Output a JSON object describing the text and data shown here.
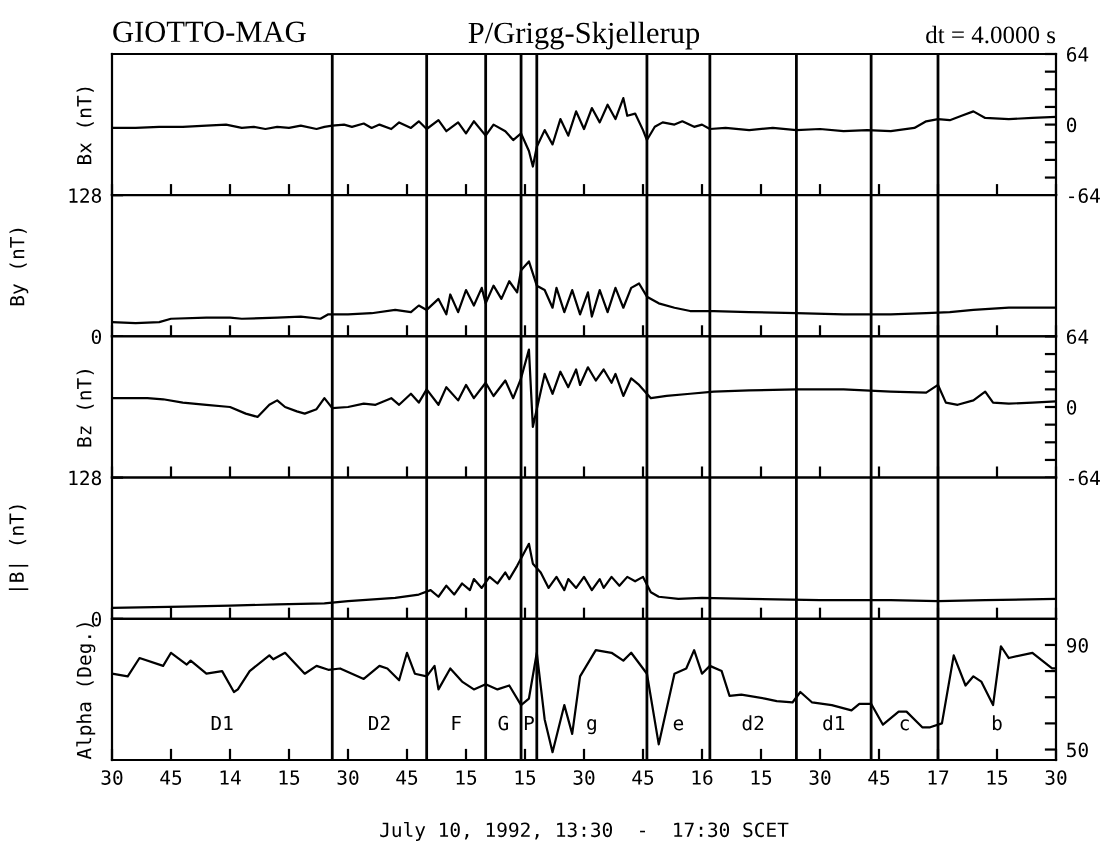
{
  "chart_data": [
    {
      "type": "line",
      "title": "P/Grigg-Skjellerup",
      "ylabel": "Bx (nT)",
      "annotations": [
        "GIOTTO-MAG",
        "dt = 4.0000 s"
      ],
      "tick_labels": "y",
      "grid": false,
      "marker": "none",
      "line_style": "solid",
      "xlim": [
        "1992-07-10T13:30",
        "1992-07-10T17:30"
      ],
      "ylim": [
        -64,
        64
      ],
      "yticks": [
        64,
        {
          "value": 48,
          "label": null
        },
        {
          "value": 32,
          "label": null
        },
        {
          "value": 16,
          "label": null
        },
        0,
        {
          "value": -16,
          "label": null
        },
        {
          "value": -32,
          "label": null
        },
        {
          "value": -48,
          "label": null
        },
        -64
      ],
      "ref_lines": [
        {
          "axis": "x",
          "value": "1992-07-10T14:26"
        },
        {
          "axis": "x",
          "value": "1992-07-10T14:50"
        },
        {
          "axis": "x",
          "value": "1992-07-10T15:05"
        },
        {
          "axis": "x",
          "value": "1992-07-10T15:14"
        },
        {
          "axis": "x",
          "value": "1992-07-10T15:18"
        },
        {
          "axis": "x",
          "value": "1992-07-10T15:46"
        },
        {
          "axis": "x",
          "value": "1992-07-10T16:02"
        },
        {
          "axis": "x",
          "value": "1992-07-10T16:24"
        },
        {
          "axis": "x",
          "value": "1992-07-10T16:43"
        },
        {
          "axis": "x",
          "value": "1992-07-10T17:00"
        }
      ],
      "series": [
        {
          "color": "#000000",
          "x": [
            "1992-07-10T13:30",
            "1992-07-10T13:36",
            "1992-07-10T13:42",
            "1992-07-10T13:48",
            "1992-07-10T13:54",
            "1992-07-10T13:59",
            "1992-07-10T14:03",
            "1992-07-10T14:06",
            "1992-07-10T14:09",
            "1992-07-10T14:12",
            "1992-07-10T14:15",
            "1992-07-10T14:18",
            "1992-07-10T14:22",
            "1992-07-10T14:24",
            "1992-07-10T14:26",
            "1992-07-10T14:29",
            "1992-07-10T14:31",
            "1992-07-10T14:34",
            "1992-07-10T14:36",
            "1992-07-10T14:38",
            "1992-07-10T14:41",
            "1992-07-10T14:43",
            "1992-07-10T14:46",
            "1992-07-10T14:48",
            "1992-07-10T14:50",
            "1992-07-10T14:53",
            "1992-07-10T14:55",
            "1992-07-10T14:58",
            "1992-07-10T15:00",
            "1992-07-10T15:02",
            "1992-07-10T15:05",
            "1992-07-10T15:07",
            "1992-07-10T15:10",
            "1992-07-10T15:12",
            "1992-07-10T15:14",
            "1992-07-10T15:16",
            "1992-07-10T15:17",
            "1992-07-10T15:18",
            "1992-07-10T15:20",
            "1992-07-10T15:22",
            "1992-07-10T15:24",
            "1992-07-10T15:26",
            "1992-07-10T15:28",
            "1992-07-10T15:30",
            "1992-07-10T15:32",
            "1992-07-10T15:34",
            "1992-07-10T15:36",
            "1992-07-10T15:38",
            "1992-07-10T15:40",
            "1992-07-10T15:41",
            "1992-07-10T15:43",
            "1992-07-10T15:45",
            "1992-07-10T15:46",
            "1992-07-10T15:48",
            "1992-07-10T15:50",
            "1992-07-10T15:53",
            "1992-07-10T15:55",
            "1992-07-10T15:58",
            "1992-07-10T16:00",
            "1992-07-10T16:02",
            "1992-07-10T16:06",
            "1992-07-10T16:12",
            "1992-07-10T16:18",
            "1992-07-10T16:24",
            "1992-07-10T16:30",
            "1992-07-10T16:36",
            "1992-07-10T16:42",
            "1992-07-10T16:48",
            "1992-07-10T16:54",
            "1992-07-10T16:57",
            "1992-07-10T17:00",
            "1992-07-10T17:03",
            "1992-07-10T17:06",
            "1992-07-10T17:09",
            "1992-07-10T17:12",
            "1992-07-10T17:18",
            "1992-07-10T17:24",
            "1992-07-10T17:30"
          ],
          "values": [
            -3,
            -3,
            -2,
            -2,
            -1,
            0,
            -3,
            -2,
            -4,
            -2,
            -3,
            -1,
            -4,
            -2,
            -1,
            0,
            -2,
            1,
            -3,
            0,
            -4,
            2,
            -3,
            3,
            -4,
            4,
            -6,
            2,
            -8,
            3,
            -10,
            0,
            -6,
            -14,
            -8,
            -24,
            -38,
            -20,
            -5,
            -18,
            5,
            -10,
            12,
            -4,
            15,
            2,
            18,
            5,
            24,
            8,
            10,
            -5,
            -14,
            -2,
            2,
            0,
            3,
            -2,
            0,
            -4,
            -3,
            -5,
            -3,
            -5,
            -4,
            -6,
            -5,
            -6,
            -3,
            3,
            5,
            4,
            8,
            12,
            6,
            5,
            6,
            7
          ]
        }
      ]
    },
    {
      "type": "line",
      "ylabel": "By (nT)",
      "tick_labels": "y",
      "grid": false,
      "marker": "none",
      "line_style": "solid",
      "xlim": [
        "1992-07-10T13:30",
        "1992-07-10T17:30"
      ],
      "ylim": [
        0,
        128
      ],
      "yticks": [
        0,
        128
      ],
      "ref_lines": [
        {
          "axis": "x",
          "value": "1992-07-10T14:26"
        },
        {
          "axis": "x",
          "value": "1992-07-10T14:50"
        },
        {
          "axis": "x",
          "value": "1992-07-10T15:05"
        },
        {
          "axis": "x",
          "value": "1992-07-10T15:14"
        },
        {
          "axis": "x",
          "value": "1992-07-10T15:18"
        },
        {
          "axis": "x",
          "value": "1992-07-10T15:46"
        },
        {
          "axis": "x",
          "value": "1992-07-10T16:02"
        },
        {
          "axis": "x",
          "value": "1992-07-10T16:24"
        },
        {
          "axis": "x",
          "value": "1992-07-10T16:43"
        },
        {
          "axis": "x",
          "value": "1992-07-10T17:00"
        }
      ],
      "series": [
        {
          "color": "#000000",
          "x": [
            "1992-07-10T13:30",
            "1992-07-10T13:36",
            "1992-07-10T13:42",
            "1992-07-10T13:45",
            "1992-07-10T13:54",
            "1992-07-10T14:00",
            "1992-07-10T14:03",
            "1992-07-10T14:12",
            "1992-07-10T14:18",
            "1992-07-10T14:23",
            "1992-07-10T14:25",
            "1992-07-10T14:30",
            "1992-07-10T14:36",
            "1992-07-10T14:42",
            "1992-07-10T14:46",
            "1992-07-10T14:48",
            "1992-07-10T14:50",
            "1992-07-10T14:53",
            "1992-07-10T14:55",
            "1992-07-10T14:56",
            "1992-07-10T14:58",
            "1992-07-10T15:00",
            "1992-07-10T15:02",
            "1992-07-10T15:04",
            "1992-07-10T15:05",
            "1992-07-10T15:07",
            "1992-07-10T15:09",
            "1992-07-10T15:11",
            "1992-07-10T15:13",
            "1992-07-10T15:14",
            "1992-07-10T15:16",
            "1992-07-10T15:18",
            "1992-07-10T15:20",
            "1992-07-10T15:22",
            "1992-07-10T15:23",
            "1992-07-10T15:25",
            "1992-07-10T15:27",
            "1992-07-10T15:29",
            "1992-07-10T15:31",
            "1992-07-10T15:32",
            "1992-07-10T15:34",
            "1992-07-10T15:36",
            "1992-07-10T15:38",
            "1992-07-10T15:40",
            "1992-07-10T15:42",
            "1992-07-10T15:44",
            "1992-07-10T15:46",
            "1992-07-10T15:49",
            "1992-07-10T15:53",
            "1992-07-10T15:57",
            "1992-07-10T16:03",
            "1992-07-10T16:12",
            "1992-07-10T16:24",
            "1992-07-10T16:36",
            "1992-07-10T16:48",
            "1992-07-10T16:57",
            "1992-07-10T17:03",
            "1992-07-10T17:09",
            "1992-07-10T17:18",
            "1992-07-10T17:30"
          ],
          "values": [
            13,
            12,
            13,
            16,
            17,
            17,
            16,
            17,
            18,
            16,
            20,
            20,
            21,
            24,
            22,
            28,
            24,
            34,
            20,
            38,
            22,
            42,
            28,
            44,
            30,
            46,
            34,
            50,
            40,
            60,
            68,
            46,
            42,
            26,
            44,
            22,
            42,
            20,
            40,
            18,
            42,
            22,
            44,
            26,
            44,
            48,
            36,
            30,
            26,
            23,
            23,
            22,
            21,
            20,
            20,
            21,
            22,
            24,
            26,
            26
          ]
        }
      ]
    },
    {
      "type": "line",
      "ylabel": "Bz (nT)",
      "tick_labels": "y",
      "grid": false,
      "marker": "none",
      "line_style": "solid",
      "xlim": [
        "1992-07-10T13:30",
        "1992-07-10T17:30"
      ],
      "ylim": [
        -64,
        64
      ],
      "yticks": [
        64,
        {
          "value": 48,
          "label": null
        },
        {
          "value": 32,
          "label": null
        },
        {
          "value": 16,
          "label": null
        },
        0,
        {
          "value": -16,
          "label": null
        },
        {
          "value": -32,
          "label": null
        },
        {
          "value": -48,
          "label": null
        },
        -64
      ],
      "ref_lines": [
        {
          "axis": "x",
          "value": "1992-07-10T14:26"
        },
        {
          "axis": "x",
          "value": "1992-07-10T14:50"
        },
        {
          "axis": "x",
          "value": "1992-07-10T15:05"
        },
        {
          "axis": "x",
          "value": "1992-07-10T15:14"
        },
        {
          "axis": "x",
          "value": "1992-07-10T15:18"
        },
        {
          "axis": "x",
          "value": "1992-07-10T15:46"
        },
        {
          "axis": "x",
          "value": "1992-07-10T16:02"
        },
        {
          "axis": "x",
          "value": "1992-07-10T16:24"
        },
        {
          "axis": "x",
          "value": "1992-07-10T16:43"
        },
        {
          "axis": "x",
          "value": "1992-07-10T17:00"
        }
      ],
      "series": [
        {
          "color": "#000000",
          "x": [
            "1992-07-10T13:30",
            "1992-07-10T13:39",
            "1992-07-10T13:43",
            "1992-07-10T13:48",
            "1992-07-10T13:54",
            "1992-07-10T14:00",
            "1992-07-10T14:04",
            "1992-07-10T14:07",
            "1992-07-10T14:10",
            "1992-07-10T14:12",
            "1992-07-10T14:14",
            "1992-07-10T14:17",
            "1992-07-10T14:19",
            "1992-07-10T14:22",
            "1992-07-10T14:24",
            "1992-07-10T14:26",
            "1992-07-10T14:30",
            "1992-07-10T14:34",
            "1992-07-10T14:37",
            "1992-07-10T14:41",
            "1992-07-10T14:43",
            "1992-07-10T14:46",
            "1992-07-10T14:48",
            "1992-07-10T14:50",
            "1992-07-10T14:53",
            "1992-07-10T14:55",
            "1992-07-10T14:58",
            "1992-07-10T15:00",
            "1992-07-10T15:02",
            "1992-07-10T15:05",
            "1992-07-10T15:07",
            "1992-07-10T15:10",
            "1992-07-10T15:12",
            "1992-07-10T15:14",
            "1992-07-10T15:16",
            "1992-07-10T15:17",
            "1992-07-10T15:19",
            "1992-07-10T15:20",
            "1992-07-10T15:22",
            "1992-07-10T15:24",
            "1992-07-10T15:26",
            "1992-07-10T15:28",
            "1992-07-10T15:29",
            "1992-07-10T15:31",
            "1992-07-10T15:33",
            "1992-07-10T15:35",
            "1992-07-10T15:37",
            "1992-07-10T15:38",
            "1992-07-10T15:40",
            "1992-07-10T15:42",
            "1992-07-10T15:44",
            "1992-07-10T15:47",
            "1992-07-10T15:51",
            "1992-07-10T15:57",
            "1992-07-10T16:03",
            "1992-07-10T16:12",
            "1992-07-10T16:24",
            "1992-07-10T16:36",
            "1992-07-10T16:48",
            "1992-07-10T16:57",
            "1992-07-10T17:00",
            "1992-07-10T17:02",
            "1992-07-10T17:05",
            "1992-07-10T17:09",
            "1992-07-10T17:12",
            "1992-07-10T17:14",
            "1992-07-10T17:18",
            "1992-07-10T17:24",
            "1992-07-10T17:30"
          ],
          "values": [
            8,
            8,
            7,
            4,
            2,
            0,
            -6,
            -9,
            2,
            6,
            0,
            -4,
            -6,
            -2,
            8,
            -1,
            0,
            3,
            2,
            8,
            2,
            12,
            4,
            16,
            2,
            18,
            6,
            20,
            8,
            22,
            10,
            24,
            8,
            26,
            52,
            -18,
            14,
            30,
            12,
            32,
            18,
            34,
            20,
            36,
            24,
            34,
            22,
            30,
            10,
            26,
            20,
            8,
            10,
            12,
            14,
            15,
            16,
            16,
            14,
            13,
            20,
            4,
            2,
            6,
            14,
            4,
            3,
            4,
            5
          ]
        }
      ]
    },
    {
      "type": "line",
      "ylabel": "|B| (nT)",
      "tick_labels": "y",
      "grid": false,
      "marker": "none",
      "line_style": "solid",
      "xlim": [
        "1992-07-10T13:30",
        "1992-07-10T17:30"
      ],
      "ylim": [
        0,
        128
      ],
      "yticks": [
        0,
        128
      ],
      "ref_lines": [
        {
          "axis": "x",
          "value": "1992-07-10T14:26"
        },
        {
          "axis": "x",
          "value": "1992-07-10T14:50"
        },
        {
          "axis": "x",
          "value": "1992-07-10T15:05"
        },
        {
          "axis": "x",
          "value": "1992-07-10T15:14"
        },
        {
          "axis": "x",
          "value": "1992-07-10T15:18"
        },
        {
          "axis": "x",
          "value": "1992-07-10T15:46"
        },
        {
          "axis": "x",
          "value": "1992-07-10T16:02"
        },
        {
          "axis": "x",
          "value": "1992-07-10T16:24"
        },
        {
          "axis": "x",
          "value": "1992-07-10T16:43"
        },
        {
          "axis": "x",
          "value": "1992-07-10T17:00"
        }
      ],
      "series": [
        {
          "color": "#000000",
          "x": [
            "1992-07-10T13:30",
            "1992-07-10T13:48",
            "1992-07-10T14:00",
            "1992-07-10T14:12",
            "1992-07-10T14:24",
            "1992-07-10T14:30",
            "1992-07-10T14:42",
            "1992-07-10T14:48",
            "1992-07-10T14:51",
            "1992-07-10T14:53",
            "1992-07-10T14:55",
            "1992-07-10T14:57",
            "1992-07-10T14:59",
            "1992-07-10T15:01",
            "1992-07-10T15:02",
            "1992-07-10T15:04",
            "1992-07-10T15:06",
            "1992-07-10T15:08",
            "1992-07-10T15:10",
            "1992-07-10T15:11",
            "1992-07-10T15:13",
            "1992-07-10T15:16",
            "1992-07-10T15:17",
            "1992-07-10T15:19",
            "1992-07-10T15:21",
            "1992-07-10T15:23",
            "1992-07-10T15:25",
            "1992-07-10T15:26",
            "1992-07-10T15:28",
            "1992-07-10T15:30",
            "1992-07-10T15:32",
            "1992-07-10T15:34",
            "1992-07-10T15:35",
            "1992-07-10T15:37",
            "1992-07-10T15:39",
            "1992-07-10T15:41",
            "1992-07-10T15:43",
            "1992-07-10T15:45",
            "1992-07-10T15:47",
            "1992-07-10T15:49",
            "1992-07-10T15:54",
            "1992-07-10T16:00",
            "1992-07-10T16:12",
            "1992-07-10T16:30",
            "1992-07-10T16:48",
            "1992-07-10T17:00",
            "1992-07-10T17:12",
            "1992-07-10T17:30"
          ],
          "values": [
            10,
            11,
            12,
            13,
            14,
            16,
            19,
            22,
            26,
            20,
            30,
            22,
            32,
            26,
            36,
            28,
            38,
            32,
            42,
            36,
            48,
            68,
            50,
            42,
            28,
            38,
            26,
            36,
            28,
            38,
            26,
            36,
            28,
            38,
            30,
            38,
            34,
            38,
            24,
            20,
            18,
            19,
            18,
            17,
            17,
            16,
            17,
            18
          ]
        }
      ]
    },
    {
      "type": "line",
      "ylabel": "Alpha (Deg.)",
      "xlabel": "July 10, 1992, 13:30  -  17:30 SCET",
      "grid": false,
      "marker": "none",
      "line_style": "solid",
      "xlim": [
        "1992-07-10T13:30",
        "1992-07-10T17:30"
      ],
      "xticks": [
        {
          "value": "1992-07-10T13:30",
          "label": "30"
        },
        {
          "value": "1992-07-10T13:45",
          "label": "45"
        },
        {
          "value": "1992-07-10T14:00",
          "label": "14"
        },
        {
          "value": "1992-07-10T14:15",
          "label": "15"
        },
        {
          "value": "1992-07-10T14:30",
          "label": "30"
        },
        {
          "value": "1992-07-10T14:45",
          "label": "45"
        },
        {
          "value": "1992-07-10T15:00",
          "label": "15"
        },
        {
          "value": "1992-07-10T15:15",
          "label": "15"
        },
        {
          "value": "1992-07-10T15:30",
          "label": "30"
        },
        {
          "value": "1992-07-10T15:45",
          "label": "45"
        },
        {
          "value": "1992-07-10T16:00",
          "label": "16"
        },
        {
          "value": "1992-07-10T16:15",
          "label": "15"
        },
        {
          "value": "1992-07-10T16:30",
          "label": "30"
        },
        {
          "value": "1992-07-10T16:45",
          "label": "45"
        },
        {
          "value": "1992-07-10T17:00",
          "label": "17"
        },
        {
          "value": "1992-07-10T17:15",
          "label": "15"
        },
        {
          "value": "1992-07-10T17:30",
          "label": "30"
        }
      ],
      "ylim": [
        46,
        100
      ],
      "yticks": [
        90,
        {
          "value": 80,
          "label": null
        },
        {
          "value": 70,
          "label": null
        },
        {
          "value": 60,
          "label": null
        },
        50
      ],
      "ref_lines": [
        {
          "axis": "x",
          "value": "1992-07-10T14:26"
        },
        {
          "axis": "x",
          "value": "1992-07-10T14:50"
        },
        {
          "axis": "x",
          "value": "1992-07-10T15:05"
        },
        {
          "axis": "x",
          "value": "1992-07-10T15:14"
        },
        {
          "axis": "x",
          "value": "1992-07-10T15:18"
        },
        {
          "axis": "x",
          "value": "1992-07-10T15:46"
        },
        {
          "axis": "x",
          "value": "1992-07-10T16:02"
        },
        {
          "axis": "x",
          "value": "1992-07-10T16:24"
        },
        {
          "axis": "x",
          "value": "1992-07-10T16:43"
        },
        {
          "axis": "x",
          "value": "1992-07-10T17:00"
        }
      ],
      "annotations": [
        "D1",
        "D2",
        "F",
        "G",
        "P",
        "g",
        "e",
        "d2",
        "d1",
        "c",
        "b"
      ],
      "series": [
        {
          "color": "#000000",
          "x": [
            "1992-07-10T13:30",
            "1992-07-10T13:34",
            "1992-07-10T13:37",
            "1992-07-10T13:43",
            "1992-07-10T13:45",
            "1992-07-10T13:49",
            "1992-07-10T13:50",
            "1992-07-10T13:54",
            "1992-07-10T13:58",
            "1992-07-10T14:01",
            "1992-07-10T14:02",
            "1992-07-10T14:05",
            "1992-07-10T14:10",
            "1992-07-10T14:11",
            "1992-07-10T14:14",
            "1992-07-10T14:19",
            "1992-07-10T14:22",
            "1992-07-10T14:25",
            "1992-07-10T14:28",
            "1992-07-10T14:31",
            "1992-07-10T14:34",
            "1992-07-10T14:38",
            "1992-07-10T14:40",
            "1992-07-10T14:43",
            "1992-07-10T14:45",
            "1992-07-10T14:47",
            "1992-07-10T14:50",
            "1992-07-10T14:52",
            "1992-07-10T14:53",
            "1992-07-10T14:56",
            "1992-07-10T14:59",
            "1992-07-10T15:02",
            "1992-07-10T15:05",
            "1992-07-10T15:08",
            "1992-07-10T15:11",
            "1992-07-10T15:14",
            "1992-07-10T15:16",
            "1992-07-10T15:18",
            "1992-07-10T15:20",
            "1992-07-10T15:22",
            "1992-07-10T15:25",
            "1992-07-10T15:27",
            "1992-07-10T15:29",
            "1992-07-10T15:33",
            "1992-07-10T15:37",
            "1992-07-10T15:40",
            "1992-07-10T15:42",
            "1992-07-10T15:46",
            "1992-07-10T15:49",
            "1992-07-10T15:53",
            "1992-07-10T15:56",
            "1992-07-10T15:58",
            "1992-07-10T16:00",
            "1992-07-10T16:02",
            "1992-07-10T16:05",
            "1992-07-10T16:07",
            "1992-07-10T16:10",
            "1992-07-10T16:16",
            "1992-07-10T16:19",
            "1992-07-10T16:23",
            "1992-07-10T16:25",
            "1992-07-10T16:28",
            "1992-07-10T16:33",
            "1992-07-10T16:38",
            "1992-07-10T16:40",
            "1992-07-10T16:43",
            "1992-07-10T16:46",
            "1992-07-10T16:50",
            "1992-07-10T16:52",
            "1992-07-10T16:56",
            "1992-07-10T16:58",
            "1992-07-10T17:01",
            "1992-07-10T17:04",
            "1992-07-10T17:07",
            "1992-07-10T17:09",
            "1992-07-10T17:11",
            "1992-07-10T17:14",
            "1992-07-10T17:16",
            "1992-07-10T17:18",
            "1992-07-10T17:24",
            "1992-07-10T17:29",
            "1992-07-10T17:30"
          ],
          "values": [
            79,
            78,
            85,
            82,
            87,
            82.5,
            84,
            79,
            80,
            72,
            73,
            80,
            86,
            84.5,
            87,
            79,
            82,
            80.5,
            81,
            79,
            77,
            82,
            81,
            76.5,
            87,
            79,
            78,
            82,
            73,
            81,
            76,
            73,
            75,
            73,
            74.5,
            67,
            69.5,
            87,
            61.5,
            49,
            67,
            56,
            78,
            88,
            87,
            84,
            87,
            79,
            52,
            79,
            81,
            88,
            79,
            82,
            80,
            70.5,
            71,
            69.5,
            68.5,
            68,
            72,
            68,
            67,
            65,
            67.5,
            67.5,
            59.5,
            64.5,
            64.5,
            58.5,
            58.5,
            60,
            86,
            74.5,
            78,
            76,
            67,
            89.5,
            85,
            87,
            81,
            81
          ]
        }
      ]
    }
  ]
}
